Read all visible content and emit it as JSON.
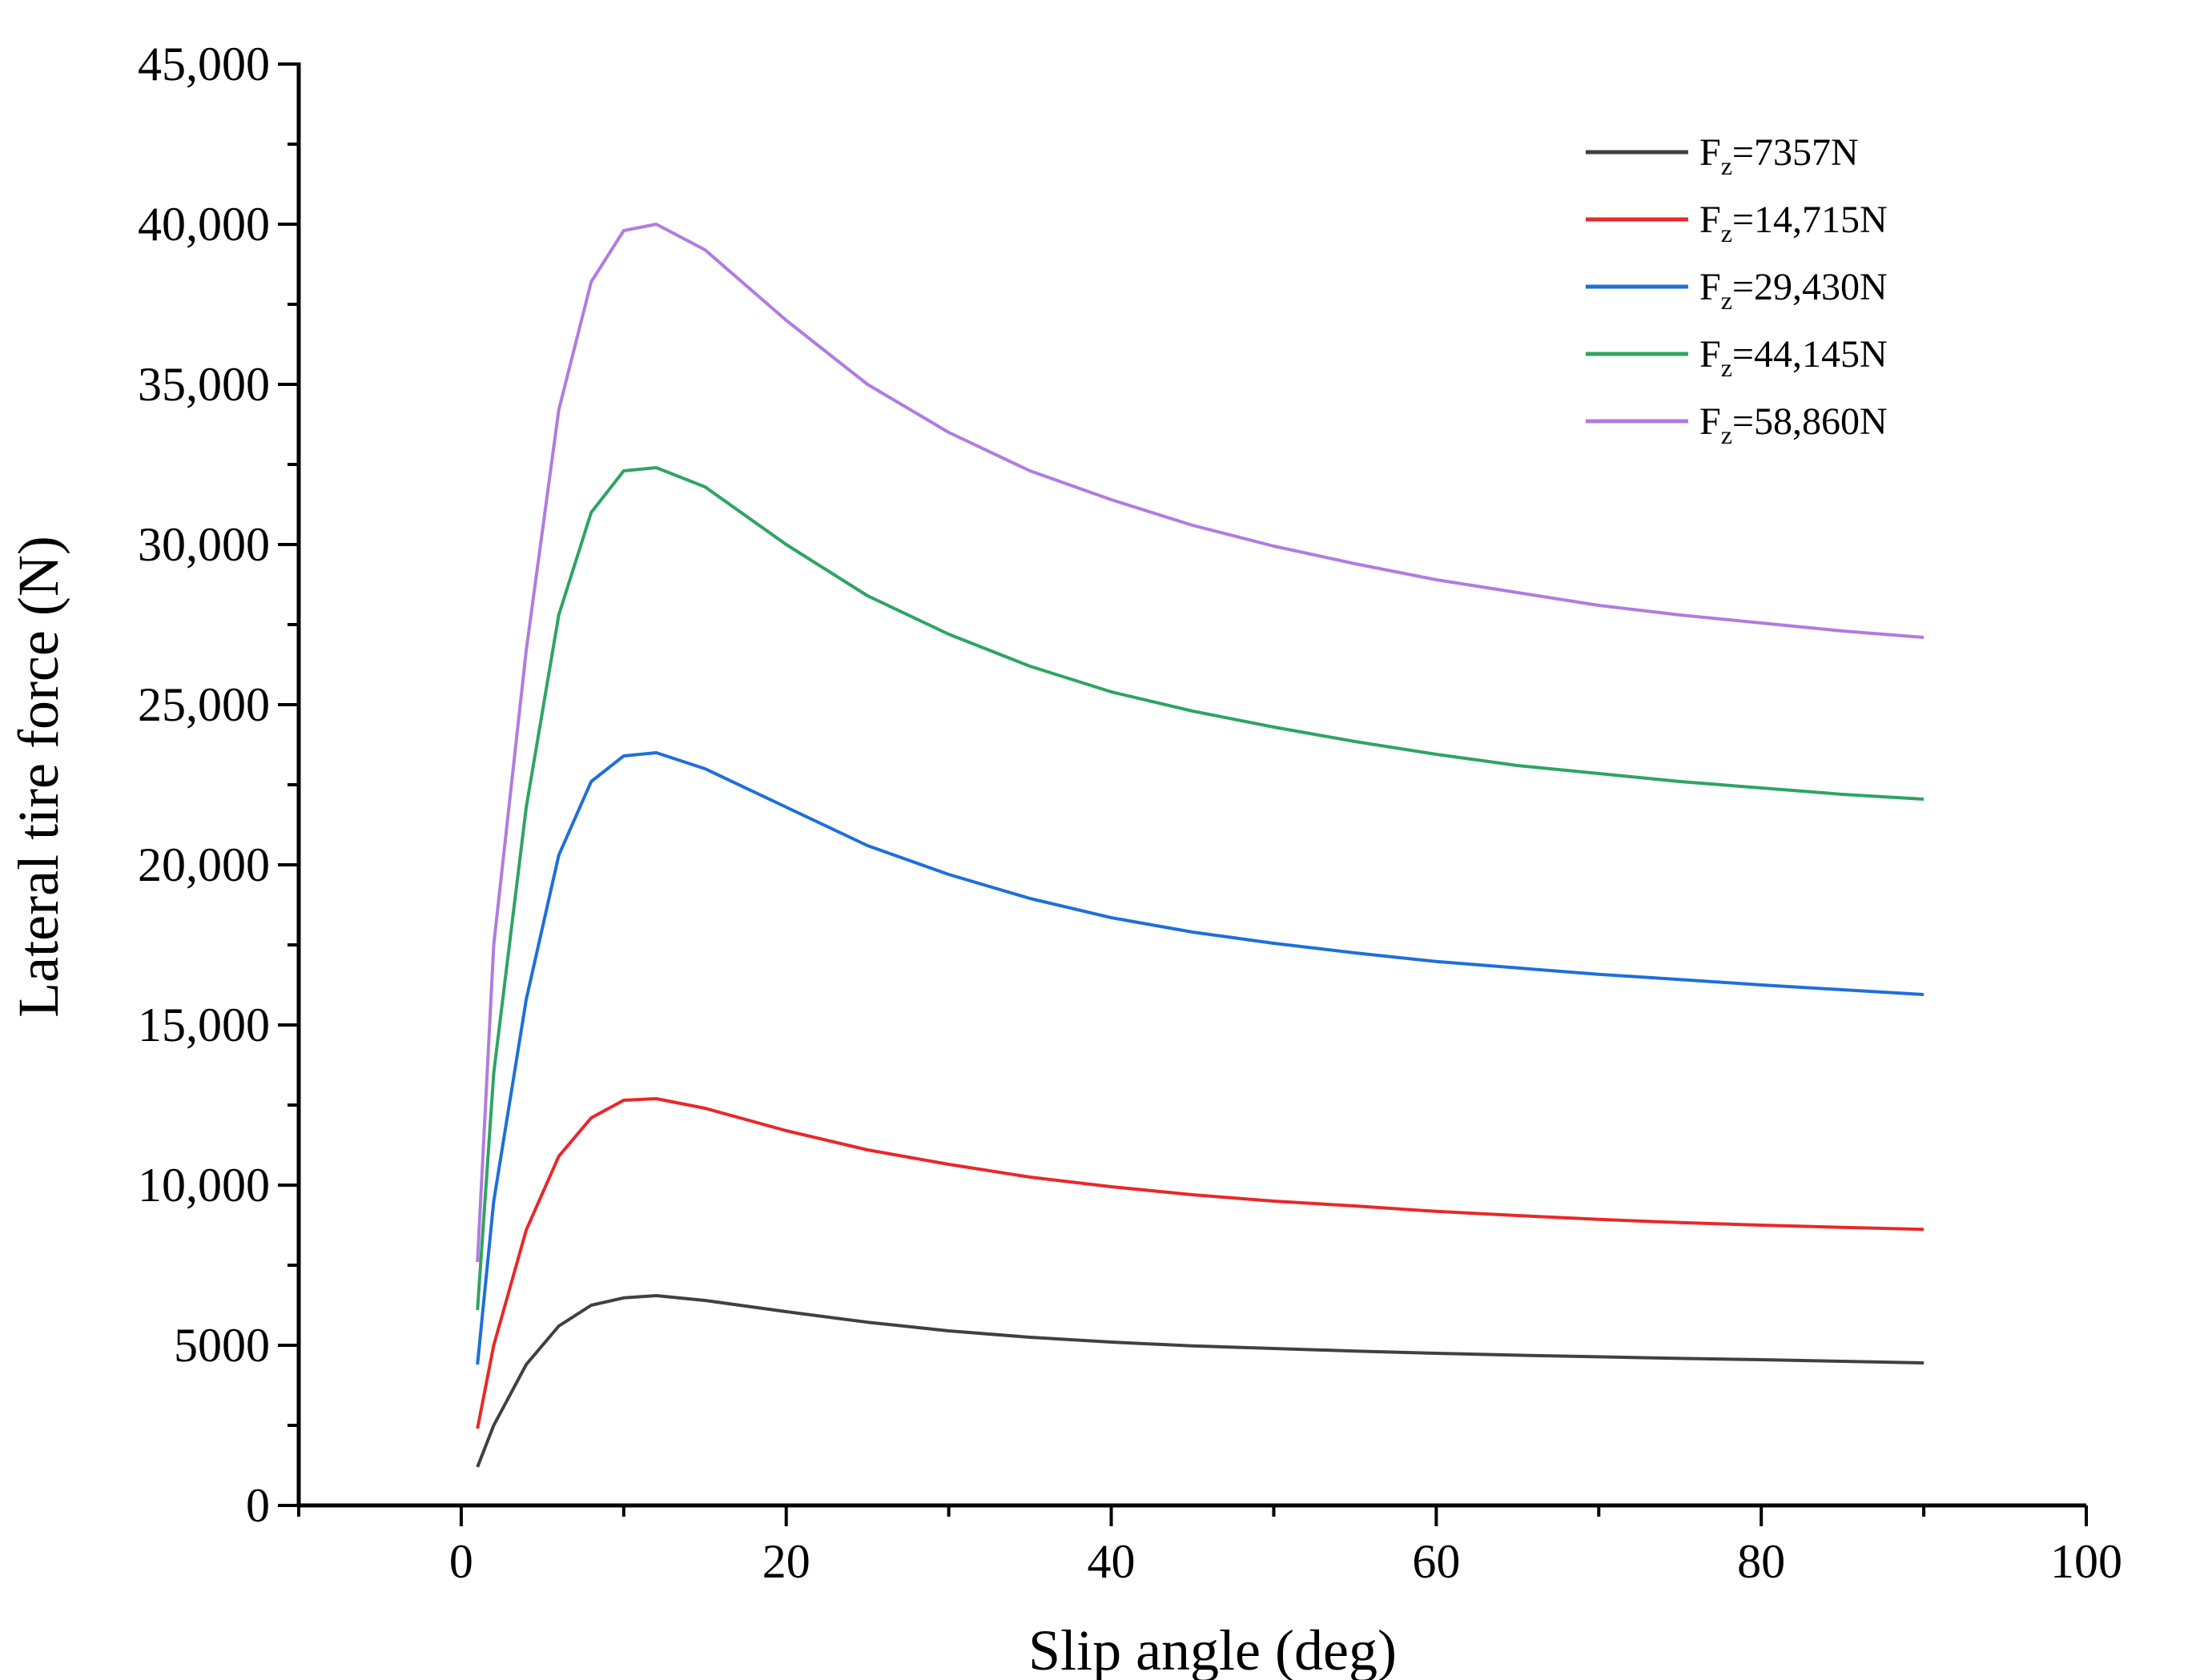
{
  "chart_data": {
    "type": "line",
    "title": "",
    "xlabel": "Slip angle (deg)",
    "ylabel": "Lateral tire force (N)",
    "xlim": [
      -10,
      100
    ],
    "ylim": [
      0,
      45000
    ],
    "grid": false,
    "legend_position": "top-right",
    "x_ticks": [
      0,
      20,
      40,
      60,
      80,
      100
    ],
    "x_tick_labels": [
      "0",
      "20",
      "40",
      "60",
      "80",
      "100"
    ],
    "y_ticks": [
      0,
      5000,
      10000,
      15000,
      20000,
      25000,
      30000,
      35000,
      40000,
      45000
    ],
    "y_tick_labels": [
      "0",
      "5000",
      "10,000",
      "15,000",
      "20,000",
      "25,000",
      "30,000",
      "35,000",
      "40,000",
      "45,000"
    ],
    "x": [
      1,
      2,
      4,
      6,
      8,
      10,
      12,
      15,
      20,
      25,
      30,
      35,
      40,
      45,
      50,
      55,
      60,
      65,
      70,
      75,
      80,
      85,
      90
    ],
    "series": [
      {
        "name_main": "F",
        "name_sub": "z",
        "name_rest": "=7357N",
        "color": "#404040",
        "values": [
          1200,
          2500,
          4400,
          5600,
          6250,
          6480,
          6550,
          6400,
          6050,
          5720,
          5450,
          5250,
          5100,
          4980,
          4900,
          4820,
          4750,
          4690,
          4640,
          4590,
          4550,
          4500,
          4450
        ]
      },
      {
        "name_main": "F",
        "name_sub": "z",
        "name_rest": "=14,715N",
        "color": "#e8282a",
        "values": [
          2400,
          5000,
          8600,
          10900,
          12100,
          12650,
          12700,
          12400,
          11700,
          11100,
          10650,
          10250,
          9950,
          9700,
          9500,
          9350,
          9180,
          9050,
          8930,
          8830,
          8750,
          8680,
          8620
        ]
      },
      {
        "name_main": "F",
        "name_sub": "z",
        "name_rest": "=29,430N",
        "color": "#1e6fd9",
        "values": [
          4400,
          9500,
          15800,
          20300,
          22600,
          23400,
          23500,
          23000,
          21800,
          20600,
          19700,
          18950,
          18350,
          17900,
          17550,
          17250,
          16980,
          16780,
          16580,
          16420,
          16250,
          16100,
          15950
        ]
      },
      {
        "name_main": "F",
        "name_sub": "z",
        "name_rest": "=44,145N",
        "color": "#2ea463",
        "values": [
          6100,
          13500,
          21800,
          27800,
          31000,
          32300,
          32400,
          31800,
          30000,
          28400,
          27200,
          26200,
          25400,
          24800,
          24300,
          23850,
          23450,
          23100,
          22850,
          22600,
          22400,
          22200,
          22050
        ]
      },
      {
        "name_main": "F",
        "name_sub": "z",
        "name_rest": "=58,860N",
        "color": "#b07ce0",
        "values": [
          7600,
          17500,
          26700,
          34200,
          38200,
          39800,
          40000,
          39200,
          37000,
          35000,
          33500,
          32300,
          31400,
          30600,
          29950,
          29400,
          28900,
          28500,
          28100,
          27800,
          27550,
          27300,
          27100
        ]
      }
    ]
  }
}
